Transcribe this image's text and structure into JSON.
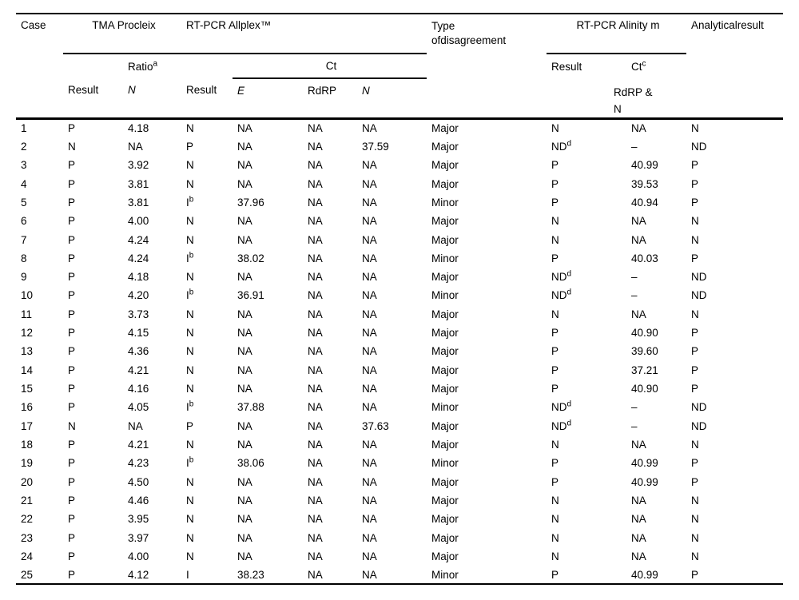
{
  "table": {
    "headers": {
      "case": "Case",
      "tma_group": "TMA Procleix",
      "allplex_group": "RT-PCR Allplex™",
      "type_line1": "Type",
      "type_line2": "ofdisagreement",
      "alinity_group": "RT-PCR Alinity m",
      "analytical": "Analyticalresult",
      "ratio": {
        "text": "Ratio",
        "sup": "a"
      },
      "ct": "Ct",
      "alinity_result": "Result",
      "alinity_ct": {
        "text": "Ct",
        "sup": "c"
      },
      "tma_result": "Result",
      "tma_n": "N",
      "allplex_result": "Result",
      "allplex_e": "E",
      "allplex_rdrp": "RdRP",
      "allplex_n": "N",
      "alinity_ct_targets_line1": "RdRP &",
      "alinity_ct_targets_line2": "N"
    },
    "rows": [
      [
        "1",
        "P",
        "4.18",
        "N",
        "NA",
        "NA",
        "NA",
        "Major",
        "N",
        "NA",
        "N"
      ],
      [
        "2",
        "N",
        "NA",
        "P",
        "NA",
        "NA",
        "37.59",
        "Major",
        "ND^d",
        "–",
        "ND"
      ],
      [
        "3",
        "P",
        "3.92",
        "N",
        "NA",
        "NA",
        "NA",
        "Major",
        "P",
        "40.99",
        "P"
      ],
      [
        "4",
        "P",
        "3.81",
        "N",
        "NA",
        "NA",
        "NA",
        "Major",
        "P",
        "39.53",
        "P"
      ],
      [
        "5",
        "P",
        "3.81",
        "I^b",
        "37.96",
        "NA",
        "NA",
        "Minor",
        "P",
        "40.94",
        "P"
      ],
      [
        "6",
        "P",
        "4.00",
        "N",
        "NA",
        "NA",
        "NA",
        "Major",
        "N",
        "NA",
        "N"
      ],
      [
        "7",
        "P",
        "4.24",
        "N",
        "NA",
        "NA",
        "NA",
        "Major",
        "N",
        "NA",
        "N"
      ],
      [
        "8",
        "P",
        "4.24",
        "I^b",
        "38.02",
        "NA",
        "NA",
        "Minor",
        "P",
        "40.03",
        "P"
      ],
      [
        "9",
        "P",
        "4.18",
        "N",
        "NA",
        "NA",
        "NA",
        "Major",
        "ND^d",
        "–",
        "ND"
      ],
      [
        "10",
        "P",
        "4.20",
        "I^b",
        "36.91",
        "NA",
        "NA",
        "Minor",
        "ND^d",
        "–",
        "ND"
      ],
      [
        "11",
        "P",
        "3.73",
        "N",
        "NA",
        "NA",
        "NA",
        "Major",
        "N",
        "NA",
        "N"
      ],
      [
        "12",
        "P",
        "4.15",
        "N",
        "NA",
        "NA",
        "NA",
        "Major",
        "P",
        "40.90",
        "P"
      ],
      [
        "13",
        "P",
        "4.36",
        "N",
        "NA",
        "NA",
        "NA",
        "Major",
        "P",
        "39.60",
        "P"
      ],
      [
        "14",
        "P",
        "4.21",
        "N",
        "NA",
        "NA",
        "NA",
        "Major",
        "P",
        "37.21",
        "P"
      ],
      [
        "15",
        "P",
        "4.16",
        "N",
        "NA",
        "NA",
        "NA",
        "Major",
        "P",
        "40.90",
        "P"
      ],
      [
        "16",
        "P",
        "4.05",
        "I^b",
        "37.88",
        "NA",
        "NA",
        "Minor",
        "ND^d",
        "–",
        "ND"
      ],
      [
        "17",
        "N",
        "NA",
        "P",
        "NA",
        "NA",
        "37.63",
        "Major",
        "ND^d",
        "–",
        "ND"
      ],
      [
        "18",
        "P",
        "4.21",
        "N",
        "NA",
        "NA",
        "NA",
        "Major",
        "N",
        "NA",
        "N"
      ],
      [
        "19",
        "P",
        "4.23",
        "I^b",
        "38.06",
        "NA",
        "NA",
        "Minor",
        "P",
        "40.99",
        "P"
      ],
      [
        "20",
        "P",
        "4.50",
        "N",
        "NA",
        "NA",
        "NA",
        "Major",
        "P",
        "40.99",
        "P"
      ],
      [
        "21",
        "P",
        "4.46",
        "N",
        "NA",
        "NA",
        "NA",
        "Major",
        "N",
        "NA",
        "N"
      ],
      [
        "22",
        "P",
        "3.95",
        "N",
        "NA",
        "NA",
        "NA",
        "Major",
        "N",
        "NA",
        "N"
      ],
      [
        "23",
        "P",
        "3.97",
        "N",
        "NA",
        "NA",
        "NA",
        "Major",
        "N",
        "NA",
        "N"
      ],
      [
        "24",
        "P",
        "4.00",
        "N",
        "NA",
        "NA",
        "NA",
        "Major",
        "N",
        "NA",
        "N"
      ],
      [
        "25",
        "P",
        "4.12",
        "I",
        "38.23",
        "NA",
        "NA",
        "Minor",
        "P",
        "40.99",
        "P"
      ]
    ]
  }
}
